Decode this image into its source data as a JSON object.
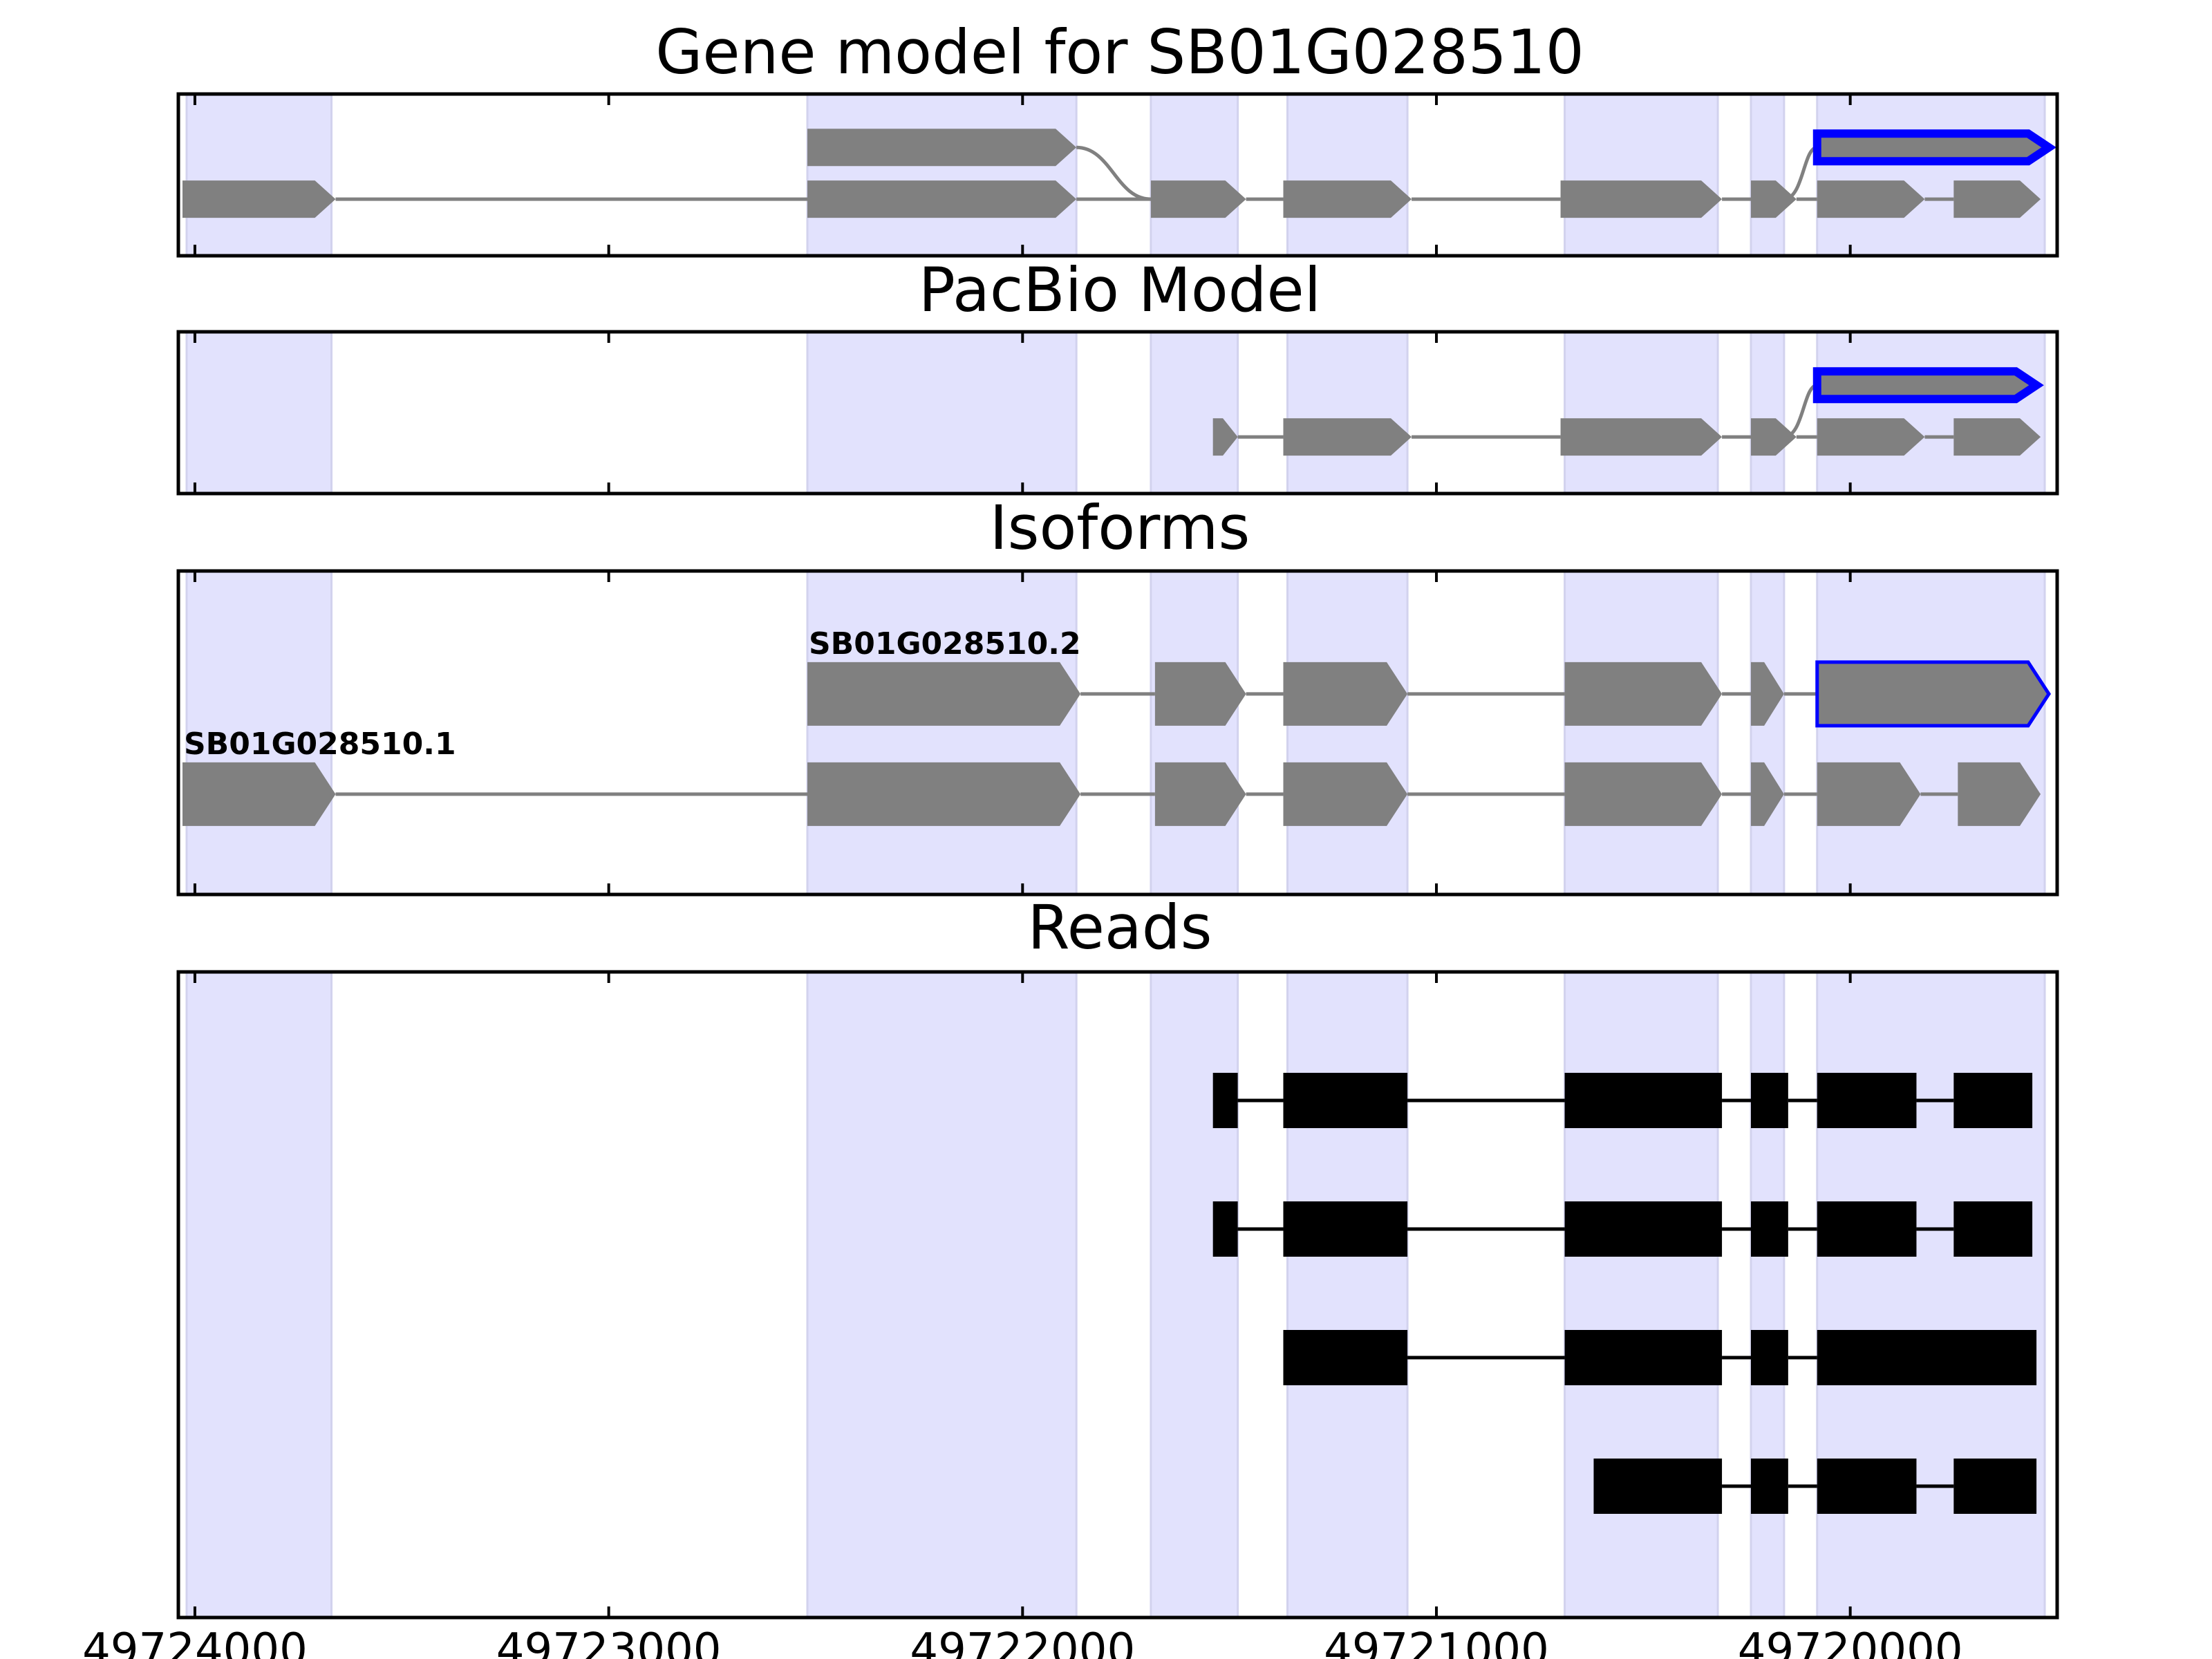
{
  "chart_data": [
    {
      "type": "gene-track",
      "title": "Gene model for SB01G028510",
      "xlim": [
        49724040,
        49719500
      ],
      "strand": "-",
      "exon_shading": [
        [
          49724020,
          49723670
        ],
        [
          49722520,
          49721870
        ],
        [
          49721690,
          49721480
        ],
        [
          49721360,
          49721070
        ],
        [
          49720690,
          49720320
        ],
        [
          49720240,
          49720160
        ],
        [
          49720080,
          49719530
        ]
      ],
      "tracks": [
        {
          "row": "top",
          "exons": [
            [
              49722520,
              49721870
            ]
          ],
          "connector": [
            49721870,
            49721690
          ],
          "highlight": {
            "range": [
              49720080,
              49719520
            ],
            "color": "#0000ff"
          }
        },
        {
          "row": "bottom",
          "exons": [
            [
              49724030,
              49723660
            ],
            [
              49722520,
              49721870
            ],
            [
              49721690,
              49721460
            ],
            [
              49721370,
              49721060
            ],
            [
              49720700,
              49720310
            ],
            [
              49720240,
              49720130
            ],
            [
              49720080,
              49719820
            ],
            [
              49719750,
              49719540
            ]
          ]
        }
      ]
    },
    {
      "type": "gene-track",
      "title": "PacBio Model",
      "xlim": [
        49724040,
        49719500
      ],
      "tracks": [
        {
          "row": "top",
          "exons": [],
          "highlight": {
            "range": [
              49720080,
              49719550
            ],
            "color": "#0000ff"
          }
        },
        {
          "row": "bottom",
          "exons": [
            [
              49721540,
              49721480
            ],
            [
              49721370,
              49721060
            ],
            [
              49720700,
              49720310
            ],
            [
              49720240,
              49720130
            ],
            [
              49720080,
              49719820
            ],
            [
              49719750,
              49719540
            ]
          ]
        }
      ]
    },
    {
      "type": "gene-track",
      "title": "Isoforms",
      "xlim": [
        49724040,
        49719500
      ],
      "isoforms": [
        {
          "name": "SB01G028510.2",
          "exons": [
            [
              49722520,
              49721860
            ],
            [
              49721680,
              49721460
            ],
            [
              49721370,
              49721070
            ],
            [
              49720690,
              49720310
            ],
            [
              49720240,
              49720160
            ],
            [
              49720080,
              49719520
            ]
          ],
          "highlight_last": true
        },
        {
          "name": "SB01G028510.1",
          "exons": [
            [
              49724030,
              49723660
            ],
            [
              49722520,
              49721860
            ],
            [
              49721680,
              49721460
            ],
            [
              49721370,
              49721070
            ],
            [
              49720690,
              49720310
            ],
            [
              49720240,
              49720160
            ],
            [
              49720080,
              49719830
            ],
            [
              49719740,
              49719540
            ]
          ]
        }
      ]
    },
    {
      "type": "gene-track",
      "title": "Reads",
      "xlim": [
        49724040,
        49719500
      ],
      "x_ticks": [
        49724000,
        49723000,
        49722000,
        49721000,
        49720000
      ],
      "reads": [
        {
          "blocks": [
            [
              49721540,
              49721480
            ],
            [
              49721370,
              49721070
            ],
            [
              49720690,
              49720310
            ],
            [
              49720240,
              49720150
            ],
            [
              49720080,
              49719840
            ],
            [
              49719750,
              49719560
            ]
          ]
        },
        {
          "blocks": [
            [
              49721540,
              49721480
            ],
            [
              49721370,
              49721070
            ],
            [
              49720690,
              49720310
            ],
            [
              49720240,
              49720150
            ],
            [
              49720080,
              49719840
            ],
            [
              49719750,
              49719560
            ]
          ]
        },
        {
          "blocks": [
            [
              49721370,
              49721070
            ],
            [
              49720690,
              49720310
            ],
            [
              49720240,
              49720150
            ],
            [
              49720080,
              49719550
            ]
          ]
        },
        {
          "blocks": [
            [
              49720620,
              49720310
            ],
            [
              49720240,
              49720150
            ],
            [
              49720080,
              49719840
            ],
            [
              49719750,
              49719550
            ]
          ]
        }
      ]
    }
  ],
  "colors": {
    "shade": "#e2e2fd",
    "exon": "#808080",
    "highlight": "#0000ff",
    "read": "#000000",
    "intron": "#808080"
  }
}
